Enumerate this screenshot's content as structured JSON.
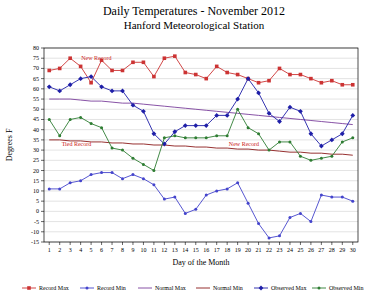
{
  "chart_data": {
    "type": "line",
    "title": "Daily Temperatures - November 2012",
    "subtitle": "Hanford Meteorological Station",
    "x_label": "Day of the Month",
    "y_label": "Degrees F",
    "x": [
      1,
      2,
      3,
      4,
      5,
      6,
      7,
      8,
      9,
      10,
      11,
      12,
      13,
      14,
      15,
      16,
      17,
      18,
      19,
      20,
      21,
      22,
      23,
      24,
      25,
      26,
      27,
      28,
      29,
      30
    ],
    "xlim": [
      0.5,
      30.5
    ],
    "xticks": [
      1,
      2,
      3,
      4,
      5,
      6,
      7,
      8,
      9,
      10,
      11,
      12,
      13,
      14,
      15,
      16,
      17,
      18,
      19,
      20,
      21,
      22,
      23,
      24,
      25,
      26,
      27,
      28,
      29,
      30
    ],
    "ylim": [
      -15,
      80
    ],
    "yticks": [
      -15,
      -10,
      -5,
      0,
      5,
      10,
      15,
      20,
      25,
      30,
      35,
      40,
      45,
      50,
      55,
      60,
      65,
      70,
      75,
      80
    ],
    "grid": true,
    "legend": "bottom",
    "series": [
      {
        "name": "Record Max",
        "color": "#cc3333",
        "marker": "square",
        "line_style": "solid",
        "values": [
          69,
          70,
          75,
          71,
          63,
          74,
          69,
          69,
          73,
          73,
          66,
          75,
          76,
          68,
          67,
          65,
          71,
          68,
          67,
          65,
          63,
          64,
          70,
          67,
          67,
          65,
          63,
          64,
          62,
          62
        ]
      },
      {
        "name": "Record Min",
        "color": "#4444cc",
        "marker": "circle",
        "line_style": "solid",
        "values": [
          11,
          11,
          14,
          15,
          18,
          19,
          19,
          16,
          18,
          16,
          13,
          6,
          7,
          -1,
          1,
          8,
          10,
          11,
          14,
          4,
          -6,
          -13,
          -12,
          -3,
          -1,
          -5,
          8,
          7,
          7,
          5
        ]
      },
      {
        "name": "Normal Max",
        "color": "#7a3f9c",
        "marker": "none",
        "line_style": "solid",
        "values": [
          55,
          55,
          55,
          54.5,
          54,
          54,
          53.5,
          53,
          53,
          52.5,
          52,
          51.5,
          51,
          50.5,
          50,
          49.5,
          49,
          48.5,
          48,
          47.5,
          47,
          46.5,
          46,
          45.5,
          45,
          44.5,
          44,
          43.5,
          43,
          42.5
        ]
      },
      {
        "name": "Normal Min",
        "color": "#8b1a1a",
        "marker": "none",
        "line_style": "solid",
        "values": [
          35,
          35,
          34.5,
          34.5,
          34,
          34,
          33.5,
          33.5,
          33,
          33,
          32.5,
          32.5,
          32,
          32,
          31.5,
          31.5,
          31,
          31,
          30.5,
          30.5,
          30,
          30,
          29.5,
          29,
          29,
          28.5,
          28.5,
          28,
          28,
          27.5
        ]
      },
      {
        "name": "Observed Max",
        "color": "#1f1fa8",
        "marker": "diamond",
        "line_style": "solid",
        "values": [
          61,
          59,
          62,
          65,
          66,
          61,
          59,
          59,
          52,
          49,
          38,
          33,
          39,
          42,
          42,
          42,
          47,
          47,
          55,
          65,
          58,
          48,
          44,
          51,
          49,
          38,
          32,
          35,
          38,
          47
        ]
      },
      {
        "name": "Observed Min",
        "color": "#2e7d32",
        "marker": "circle",
        "line_style": "solid",
        "values": [
          45,
          37,
          45,
          46,
          43,
          41,
          31,
          30,
          26,
          23,
          20,
          36,
          37,
          36,
          36,
          36,
          37,
          37,
          50,
          41,
          38,
          30,
          34,
          34,
          27,
          25,
          26,
          27,
          34,
          36
        ]
      }
    ],
    "annotations": [
      {
        "text": "New Record",
        "x": 5.5,
        "y": 74,
        "color": "#cc2222"
      },
      {
        "text": "Tied Record",
        "x": 3.6,
        "y": 32,
        "color": "#cc2222"
      },
      {
        "text": "New Record",
        "x": 19.6,
        "y": 32,
        "color": "#cc2222"
      }
    ]
  }
}
